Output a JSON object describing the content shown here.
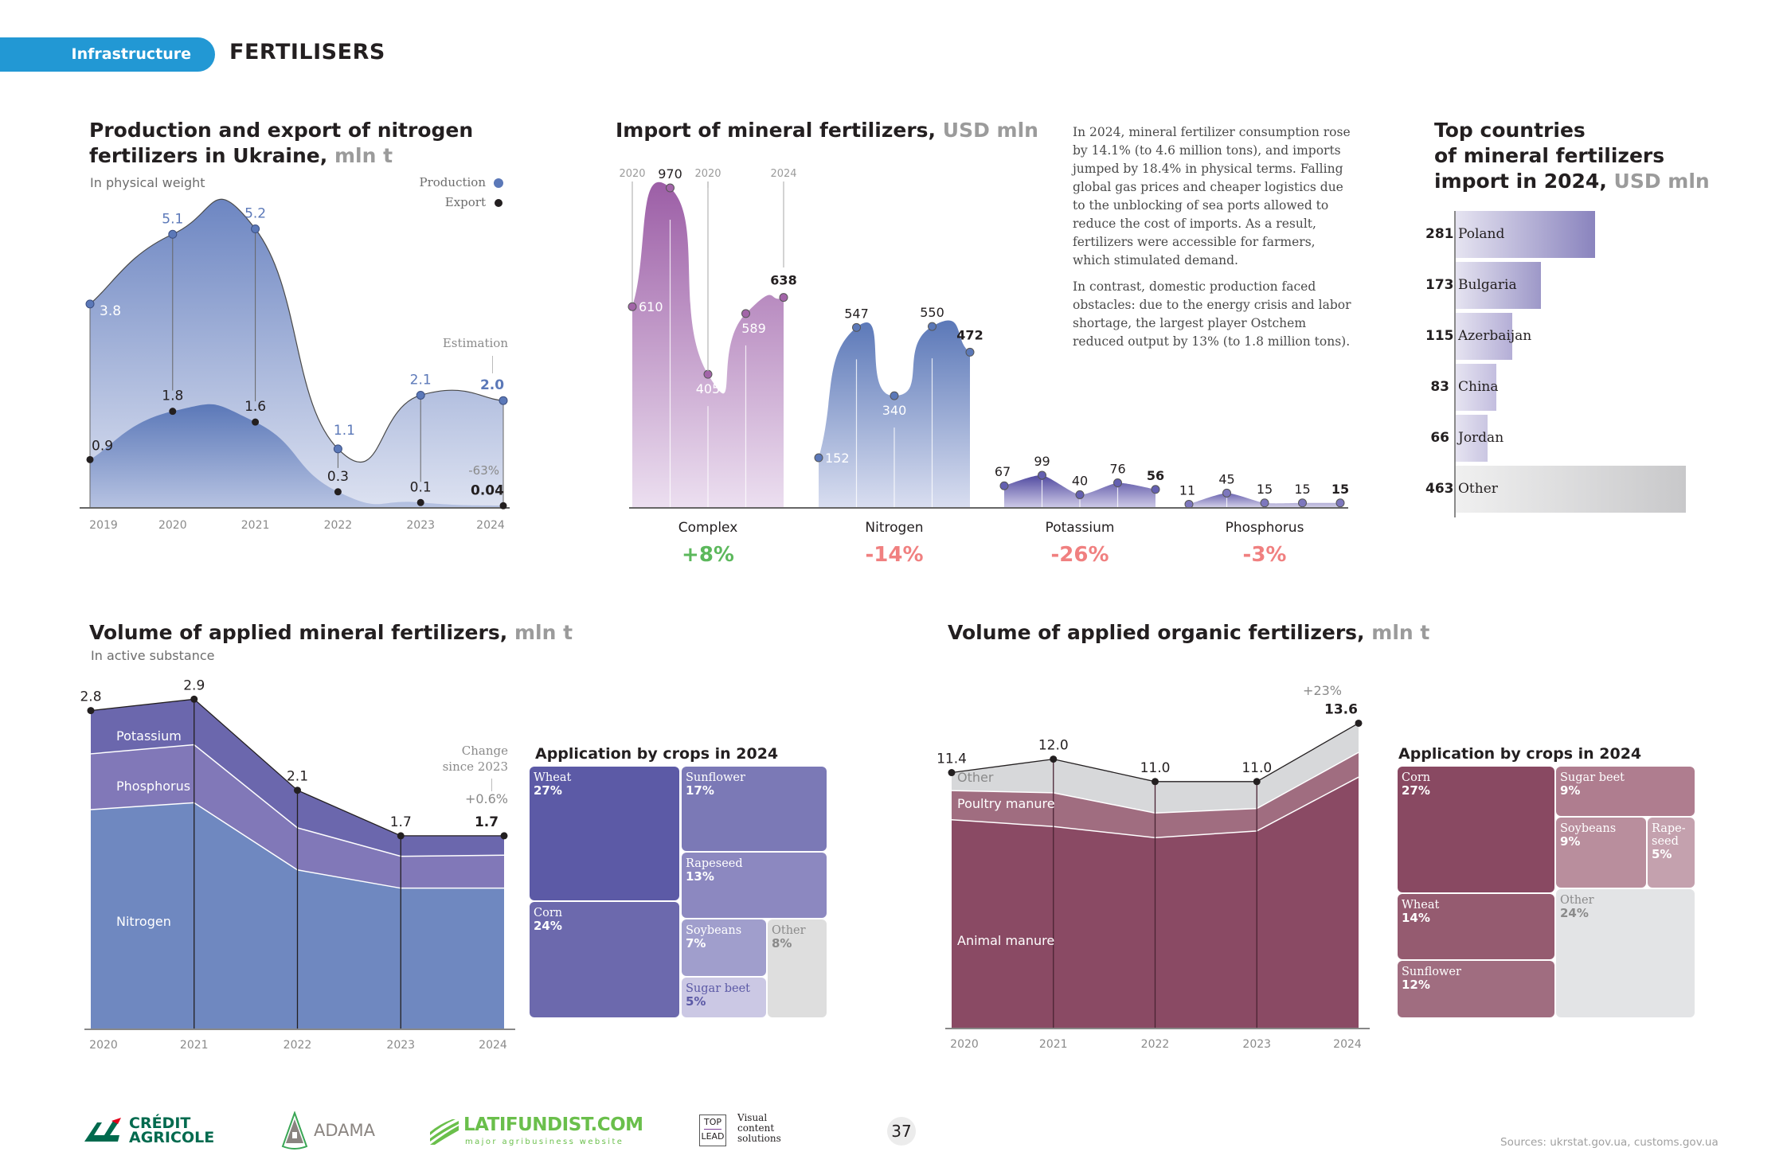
{
  "header": {
    "section": "Infrastructure",
    "title": "FERTILISERS",
    "badge_color": "#2298d4"
  },
  "production_chart": {
    "title_line1": "Production and export of nitrogen",
    "title_line2": "fertilizers in Ukraine,",
    "unit": "mln t",
    "subtitle": "In physical weight",
    "legend": [
      "Production",
      "Export"
    ],
    "estimation_label": "Estimation",
    "change_label": "-63%"
  },
  "import_chart": {
    "title": "Import of mineral fertilizers,",
    "unit": "USD mln",
    "year_markers": [
      "2020",
      "2020",
      "2024"
    ]
  },
  "commentary": {
    "paragraphs": [
      "In 2024, mineral fertilizer consumption rose by 14.1% (to 4.6 million tons), and imports jumped by 18.4% in physical terms. Falling global gas prices and cheaper logistics due to the unblocking of sea ports allowed to reduce the cost of imports. As a result, fertilizers were accessible for farmers, which stimulated demand.",
      "In contrast, domestic production faced obstacles: due to the energy crisis and labor shortage, the largest player Ostchem reduced output by 13% (to 1.8 million tons)."
    ]
  },
  "countries_chart": {
    "title_line1": "Top countries",
    "title_line2": "of mineral fertilizers",
    "title_line3": "import in 2024,",
    "unit": "USD mln"
  },
  "mineral_chart": {
    "title": "Volume of applied mineral fertilizers,",
    "unit": "mln t",
    "subtitle": "In active substance",
    "change_label_line1": "Change",
    "change_label_line2": "since 2023",
    "change_value": "+0.6%"
  },
  "mineral_treemap": {
    "title": "Application by crops in 2024"
  },
  "organic_chart": {
    "title": "Volume of applied organic fertilizers,",
    "unit": "mln t",
    "change_value": "+23%"
  },
  "organic_treemap": {
    "title": "Application by crops in 2024"
  },
  "footer": {
    "logos": [
      "CRÉDIT AGRICOLE",
      "ADAMA",
      "LATIFUNDIST.COM",
      "TOP LEAD"
    ],
    "credit_agricole_line1": "CRÉDIT",
    "credit_agricole_line2": "AGRICOLE",
    "adama": "ADAMA",
    "latifundist": "LATIFUNDIST.COM",
    "latifundist_tagline": "major agribusiness website",
    "toplead_top": "TOP",
    "toplead_bottom": "LEAD",
    "toplead_tagline": [
      "Visual",
      "content",
      "solutions"
    ],
    "page_number": "37",
    "sources": "Sources: ukrstat.gov.ua, customs.gov.ua"
  },
  "chart_data": [
    {
      "type": "area",
      "title": "Production and export of nitrogen fertilizers in Ukraine, mln t",
      "subtitle": "In physical weight",
      "x": [
        "2019",
        "2020",
        "2021",
        "2022",
        "2023",
        "2024"
      ],
      "series": [
        {
          "name": "Production",
          "values": [
            3.8,
            5.1,
            5.2,
            1.1,
            2.1,
            2.0
          ],
          "labels": [
            "3.8",
            "5.1",
            "5.2",
            "1.1",
            "2.1",
            "2.0"
          ],
          "color": "#5b78b8"
        },
        {
          "name": "Export",
          "values": [
            0.9,
            1.8,
            1.6,
            0.3,
            0.1,
            0.04
          ],
          "labels": [
            "0.9",
            "1.8",
            "1.6",
            "0.3",
            "0.1",
            "0.04"
          ],
          "color": "#231f20"
        }
      ],
      "annotations": [
        "Estimation (2024)",
        "-63% (export 2024)"
      ],
      "ylim": [
        0,
        5.5
      ],
      "legend": "top-right",
      "grid": false
    },
    {
      "type": "area",
      "title": "Import of mineral fertilizers, USD mln",
      "x": [
        "2020",
        "2021",
        "2022",
        "2023",
        "2024"
      ],
      "series": [
        {
          "name": "Complex",
          "values": [
            610,
            970,
            405,
            589,
            638
          ],
          "change": "+8%",
          "color": "#a265a8",
          "change_color": "#5cb85c"
        },
        {
          "name": "Nitrogen",
          "values": [
            152,
            547,
            340,
            550,
            472
          ],
          "change": "-14%",
          "color": "#5b78b8",
          "change_color": "#f08080"
        },
        {
          "name": "Potassium",
          "values": [
            67,
            99,
            40,
            76,
            56
          ],
          "change": "-26%",
          "color": "#5a52a0",
          "change_color": "#f08080"
        },
        {
          "name": "Phosphorus",
          "values": [
            11,
            45,
            15,
            15,
            15
          ],
          "change": "-3%",
          "color": "#7870b8",
          "change_color": "#f08080"
        }
      ],
      "ylim": [
        0,
        1000
      ],
      "grid": false
    },
    {
      "type": "bar",
      "title": "Top countries of mineral fertilizers import in 2024, USD mln",
      "categories": [
        "Poland",
        "Bulgaria",
        "Azerbaijan",
        "China",
        "Jordan",
        "Other"
      ],
      "values": [
        281,
        173,
        115,
        83,
        66,
        463
      ],
      "orientation": "horizontal",
      "colors": [
        "#8a84be",
        "#9d98c8",
        "#b4aed6",
        "#c3bedf",
        "#cac6e2",
        "#c8c8ca"
      ]
    },
    {
      "type": "area",
      "stacked": true,
      "title": "Volume of applied mineral fertilizers, mln t",
      "subtitle": "In active substance",
      "x": [
        "2020",
        "2021",
        "2022",
        "2023",
        "2024"
      ],
      "totals": [
        2.8,
        2.9,
        2.1,
        1.7,
        1.7
      ],
      "total_labels": [
        "2.8",
        "2.9",
        "2.1",
        "1.7",
        "1.7"
      ],
      "series": [
        {
          "name": "Nitrogen",
          "values": [
            1.93,
            1.99,
            1.4,
            1.24,
            1.24
          ],
          "color": "#6f88c0"
        },
        {
          "name": "Phosphorus",
          "values": [
            0.49,
            0.51,
            0.37,
            0.28,
            0.29
          ],
          "color": "#8178b8"
        },
        {
          "name": "Potassium",
          "values": [
            0.38,
            0.4,
            0.33,
            0.18,
            0.17
          ],
          "color": "#6b67ad"
        }
      ],
      "annotations": [
        "Change since 2023: +0.6%"
      ],
      "ylim": [
        0,
        3.0
      ]
    },
    {
      "type": "treemap",
      "title": "Application by crops in 2024 (mineral)",
      "categories": [
        "Wheat",
        "Corn",
        "Sunflower",
        "Rapeseed",
        "Soybeans",
        "Sugar beet",
        "Other"
      ],
      "values": [
        27,
        24,
        17,
        13,
        7,
        5,
        8
      ],
      "labels": [
        "27%",
        "24%",
        "17%",
        "13%",
        "7%",
        "5%",
        "8%"
      ]
    },
    {
      "type": "area",
      "stacked": true,
      "title": "Volume of applied organic fertilizers, mln t",
      "x": [
        "2020",
        "2021",
        "2022",
        "2023",
        "2024"
      ],
      "totals": [
        11.4,
        12.0,
        11.0,
        11.0,
        13.6
      ],
      "total_labels": [
        "11.4",
        "12.0",
        "11.0",
        "11.0",
        "13.6"
      ],
      "series": [
        {
          "name": "Animal manure",
          "values": [
            9.3,
            9.0,
            8.5,
            8.8,
            11.2
          ],
          "color": "#8a4a64"
        },
        {
          "name": "Poultry manure",
          "values": [
            1.3,
            1.5,
            1.1,
            1.0,
            1.1
          ],
          "color": "#a06d80"
        },
        {
          "name": "Other",
          "values": [
            0.8,
            1.5,
            1.4,
            1.2,
            1.3
          ],
          "color": "#d7d8da"
        }
      ],
      "annotations": [
        "+23%"
      ],
      "ylim": [
        0,
        14
      ]
    },
    {
      "type": "treemap",
      "title": "Application by crops in 2024 (organic)",
      "categories": [
        "Corn",
        "Wheat",
        "Sunflower",
        "Sugar beet",
        "Soybeans",
        "Rapeseed",
        "Other"
      ],
      "display_labels": [
        "Corn",
        "Wheat",
        "Sunflower",
        "Sugar beet",
        "Soybeans",
        "Rape-\nseed",
        "Other"
      ],
      "values": [
        27,
        14,
        12,
        9,
        9,
        5,
        24
      ],
      "labels": [
        "27%",
        "14%",
        "12%",
        "9%",
        "9%",
        "5%",
        "24%"
      ]
    }
  ]
}
